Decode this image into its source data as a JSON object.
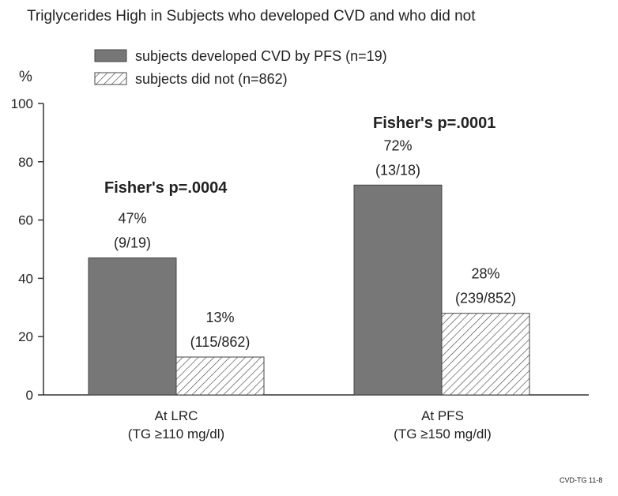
{
  "chart_data": {
    "type": "bar",
    "title": "Triglycerides High in Subjects who developed CVD and who did not",
    "ylabel": "%",
    "xlabel": "",
    "ylim": [
      0,
      100
    ],
    "yticks": [
      0,
      20,
      40,
      60,
      80,
      100
    ],
    "grid": false,
    "legend_position": "top-center",
    "categories": [
      {
        "line1": "At LRC",
        "line2": "(TG ≥110 mg/dl)"
      },
      {
        "line1": "At PFS",
        "line2": "(TG ≥150 mg/dl)"
      }
    ],
    "series": [
      {
        "name": "subjects developed CVD by PFS (n=19)",
        "fill": "solid",
        "color": "#777777",
        "values": [
          47,
          72
        ],
        "labels": [
          {
            "pct": "47%",
            "frac": "(9/19)"
          },
          {
            "pct": "72%",
            "frac": "(13/18)"
          }
        ]
      },
      {
        "name": "subjects did not (n=862)",
        "fill": "hatched",
        "color": "#555555",
        "values": [
          13,
          28
        ],
        "labels": [
          {
            "pct": "13%",
            "frac": "(115/862)"
          },
          {
            "pct": "28%",
            "frac": "(239/852)"
          }
        ]
      }
    ],
    "annotations": [
      "Fisher's p=.0004",
      "Fisher's p=.0001"
    ]
  },
  "footer": "CVD-TG 11-8"
}
